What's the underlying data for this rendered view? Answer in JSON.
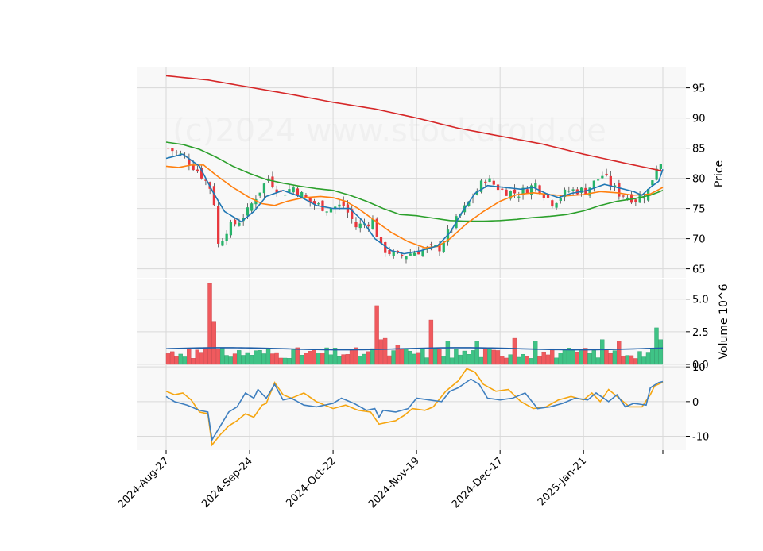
{
  "chart_data": {
    "type": "candlestick",
    "watermark": "(c)2024 www.stockdroid.de",
    "x_tick_labels": [
      "2024-Aug-27",
      "2024-Sep-24",
      "2024-Oct-22",
      "2024-Nov-19",
      "2024-Dec-17",
      "2025-Jan-21"
    ],
    "x_tick_indices": [
      0,
      20,
      40,
      60,
      80,
      100
    ],
    "n_sessions": 119,
    "grid": true,
    "colors": {
      "up": "#26b36a",
      "down": "#e8373d",
      "vol_up": "#3fc386",
      "vol_down": "#f05a5e",
      "ma_short": "#1f77b4",
      "ma_mid": "#ff7f0e",
      "ma_long": "#2ca02c",
      "ma_200": "#d62728",
      "vol_avg": "#1f5fa8",
      "osc_blue": "#3f7fbf",
      "osc_orange": "#f5a50f",
      "panel_bg": "#f8f8f8",
      "grid": "#d9d9d9"
    },
    "price_panel": {
      "ylabel": "Price",
      "ylim": [
        63.5,
        98.5
      ],
      "yticks": [
        65,
        70,
        75,
        80,
        85,
        90,
        95
      ],
      "anchors": [
        [
          0,
          85.0
        ],
        [
          4,
          83.5
        ],
        [
          8,
          80.5
        ],
        [
          10,
          78.5
        ],
        [
          11,
          76.0
        ],
        [
          12,
          69.0
        ],
        [
          14,
          71.5
        ],
        [
          17,
          73.0
        ],
        [
          19,
          74.5
        ],
        [
          21,
          77.0
        ],
        [
          24,
          80.0
        ],
        [
          27,
          77.5
        ],
        [
          30,
          78.5
        ],
        [
          34,
          76.0
        ],
        [
          38,
          75.0
        ],
        [
          42,
          75.5
        ],
        [
          45,
          72.0
        ],
        [
          49,
          73.0
        ],
        [
          51,
          68.5
        ],
        [
          55,
          67.0
        ],
        [
          60,
          68.0
        ],
        [
          65,
          68.5
        ],
        [
          68,
          72.0
        ],
        [
          73,
          77.0
        ],
        [
          76,
          80.0
        ],
        [
          80,
          78.0
        ],
        [
          84,
          77.5
        ],
        [
          88,
          79.0
        ],
        [
          92,
          76.0
        ],
        [
          96,
          78.0
        ],
        [
          100,
          78.0
        ],
        [
          104,
          80.5
        ],
        [
          108,
          77.5
        ],
        [
          112,
          76.5
        ],
        [
          115,
          78.0
        ],
        [
          117,
          82.0
        ],
        [
          119,
          83.5
        ]
      ],
      "ma_short_anchors": [
        [
          0,
          83.3
        ],
        [
          4,
          84.0
        ],
        [
          8,
          82.0
        ],
        [
          11,
          78.0
        ],
        [
          14,
          74.5
        ],
        [
          18,
          72.8
        ],
        [
          21,
          74.5
        ],
        [
          24,
          77.0
        ],
        [
          28,
          78.0
        ],
        [
          32,
          77.0
        ],
        [
          36,
          75.5
        ],
        [
          40,
          75.0
        ],
        [
          44,
          75.0
        ],
        [
          47,
          73.0
        ],
        [
          50,
          70.0
        ],
        [
          54,
          68.0
        ],
        [
          57,
          67.5
        ],
        [
          61,
          68.0
        ],
        [
          65,
          68.8
        ],
        [
          68,
          71.0
        ],
        [
          71,
          74.5
        ],
        [
          74,
          77.5
        ],
        [
          77,
          78.8
        ],
        [
          81,
          78.5
        ],
        [
          85,
          78.2
        ],
        [
          88,
          78.5
        ],
        [
          91,
          77.5
        ],
        [
          94,
          76.8
        ],
        [
          97,
          77.5
        ],
        [
          101,
          78.0
        ],
        [
          105,
          79.0
        ],
        [
          108,
          78.5
        ],
        [
          112,
          77.8
        ],
        [
          114,
          77.2
        ],
        [
          116,
          78.5
        ],
        [
          118,
          79.5
        ],
        [
          119,
          81.5
        ]
      ],
      "ma_mid_anchors": [
        [
          0,
          82.0
        ],
        [
          3,
          81.8
        ],
        [
          6,
          82.2
        ],
        [
          9,
          82.2
        ],
        [
          12,
          80.5
        ],
        [
          16,
          78.5
        ],
        [
          20,
          76.8
        ],
        [
          23,
          75.8
        ],
        [
          26,
          75.5
        ],
        [
          29,
          76.2
        ],
        [
          33,
          76.8
        ],
        [
          37,
          77.0
        ],
        [
          40,
          76.8
        ],
        [
          43,
          76.2
        ],
        [
          46,
          75.0
        ],
        [
          50,
          73.0
        ],
        [
          54,
          71.0
        ],
        [
          58,
          69.5
        ],
        [
          62,
          68.5
        ],
        [
          65,
          68.7
        ],
        [
          68,
          70.0
        ],
        [
          72,
          72.5
        ],
        [
          76,
          74.5
        ],
        [
          80,
          76.2
        ],
        [
          84,
          77.3
        ],
        [
          88,
          77.6
        ],
        [
          92,
          77.3
        ],
        [
          96,
          77.1
        ],
        [
          100,
          77.3
        ],
        [
          104,
          77.8
        ],
        [
          108,
          77.6
        ],
        [
          112,
          77.2
        ],
        [
          116,
          77.4
        ],
        [
          119,
          78.5
        ]
      ],
      "ma_long_anchors": [
        [
          0,
          86.0
        ],
        [
          4,
          85.6
        ],
        [
          8,
          84.8
        ],
        [
          12,
          83.5
        ],
        [
          16,
          82.0
        ],
        [
          20,
          80.8
        ],
        [
          24,
          79.8
        ],
        [
          28,
          79.2
        ],
        [
          32,
          78.7
        ],
        [
          36,
          78.3
        ],
        [
          40,
          78.0
        ],
        [
          44,
          77.2
        ],
        [
          48,
          76.2
        ],
        [
          52,
          75.0
        ],
        [
          56,
          74.0
        ],
        [
          60,
          73.8
        ],
        [
          64,
          73.4
        ],
        [
          68,
          73.0
        ],
        [
          72,
          72.9
        ],
        [
          76,
          72.9
        ],
        [
          80,
          73.0
        ],
        [
          84,
          73.2
        ],
        [
          88,
          73.5
        ],
        [
          92,
          73.7
        ],
        [
          96,
          74.0
        ],
        [
          100,
          74.6
        ],
        [
          104,
          75.5
        ],
        [
          108,
          76.2
        ],
        [
          112,
          76.6
        ],
        [
          116,
          77.2
        ],
        [
          119,
          78.0
        ]
      ],
      "ma_200_anchors": [
        [
          0,
          97.0
        ],
        [
          10,
          96.3
        ],
        [
          20,
          95.1
        ],
        [
          30,
          93.9
        ],
        [
          40,
          92.6
        ],
        [
          50,
          91.5
        ],
        [
          60,
          90.0
        ],
        [
          70,
          88.3
        ],
        [
          80,
          87.0
        ],
        [
          90,
          85.7
        ],
        [
          100,
          84.0
        ],
        [
          110,
          82.5
        ],
        [
          119,
          81.2
        ]
      ]
    },
    "volume_panel": {
      "ylabel": "Volume  10^6",
      "ylim": [
        0,
        6.5
      ],
      "yticks": [
        0.0,
        2.5,
        5.0
      ],
      "ytick_labels": [
        "0.0",
        "2.5",
        "5.0"
      ],
      "spikes": [
        [
          10,
          6.2
        ],
        [
          11,
          3.3
        ],
        [
          50,
          4.5
        ],
        [
          63,
          3.4
        ],
        [
          5,
          1.2
        ],
        [
          9,
          1.3
        ],
        [
          51,
          1.9
        ],
        [
          52,
          2.0
        ],
        [
          55,
          1.5
        ],
        [
          67,
          1.8
        ],
        [
          74,
          1.8
        ],
        [
          83,
          2.0
        ],
        [
          88,
          1.8
        ],
        [
          104,
          1.9
        ],
        [
          108,
          1.8
        ],
        [
          117,
          2.8
        ],
        [
          118,
          1.9
        ]
      ],
      "base": 1.0,
      "avg_level": 1.2
    },
    "oscillator_panel": {
      "ylim": [
        -14,
        10.5
      ],
      "yticks": [
        -10,
        0,
        10
      ],
      "blue_anchors": [
        [
          0,
          1.5
        ],
        [
          2,
          0.0
        ],
        [
          5,
          -1.0
        ],
        [
          8,
          -2.5
        ],
        [
          10,
          -3.0
        ],
        [
          11,
          -11.0
        ],
        [
          13,
          -7.0
        ],
        [
          15,
          -3.0
        ],
        [
          17,
          -1.5
        ],
        [
          19,
          2.5
        ],
        [
          21,
          1.0
        ],
        [
          22,
          3.5
        ],
        [
          24,
          1.0
        ],
        [
          26,
          5.0
        ],
        [
          28,
          0.5
        ],
        [
          30,
          1.0
        ],
        [
          33,
          -1.0
        ],
        [
          36,
          -1.5
        ],
        [
          40,
          -0.5
        ],
        [
          42,
          1.0
        ],
        [
          45,
          -0.5
        ],
        [
          48,
          -2.5
        ],
        [
          50,
          -2.0
        ],
        [
          51,
          -4.5
        ],
        [
          52,
          -2.5
        ],
        [
          55,
          -3.0
        ],
        [
          58,
          -2.0
        ],
        [
          60,
          1.0
        ],
        [
          63,
          0.5
        ],
        [
          66,
          0.0
        ],
        [
          68,
          3.0
        ],
        [
          70,
          4.0
        ],
        [
          73,
          6.5
        ],
        [
          75,
          5.0
        ],
        [
          77,
          1.0
        ],
        [
          80,
          0.5
        ],
        [
          83,
          1.0
        ],
        [
          86,
          2.5
        ],
        [
          89,
          -2.0
        ],
        [
          92,
          -1.5
        ],
        [
          95,
          -0.5
        ],
        [
          98,
          1.0
        ],
        [
          101,
          0.5
        ],
        [
          103,
          2.5
        ],
        [
          106,
          0.0
        ],
        [
          108,
          2.0
        ],
        [
          110,
          -1.5
        ],
        [
          112,
          -0.5
        ],
        [
          115,
          -1.0
        ],
        [
          116,
          4.0
        ],
        [
          118,
          5.5
        ],
        [
          119,
          5.8
        ]
      ],
      "orange_anchors": [
        [
          0,
          3.0
        ],
        [
          2,
          2.0
        ],
        [
          4,
          2.5
        ],
        [
          6,
          0.5
        ],
        [
          8,
          -3.0
        ],
        [
          10,
          -3.5
        ],
        [
          11,
          -12.5
        ],
        [
          13,
          -9.5
        ],
        [
          15,
          -7.0
        ],
        [
          17,
          -5.5
        ],
        [
          19,
          -3.5
        ],
        [
          21,
          -4.5
        ],
        [
          23,
          -1.0
        ],
        [
          24,
          -0.5
        ],
        [
          26,
          5.5
        ],
        [
          28,
          2.0
        ],
        [
          30,
          1.0
        ],
        [
          33,
          2.5
        ],
        [
          36,
          0.0
        ],
        [
          40,
          -2.0
        ],
        [
          43,
          -1.0
        ],
        [
          46,
          -2.5
        ],
        [
          49,
          -3.0
        ],
        [
          51,
          -6.5
        ],
        [
          53,
          -6.0
        ],
        [
          55,
          -5.5
        ],
        [
          57,
          -4.0
        ],
        [
          59,
          -2.0
        ],
        [
          62,
          -2.5
        ],
        [
          64,
          -1.5
        ],
        [
          67,
          3.0
        ],
        [
          70,
          6.0
        ],
        [
          72,
          9.5
        ],
        [
          74,
          8.5
        ],
        [
          76,
          5.0
        ],
        [
          79,
          3.0
        ],
        [
          82,
          3.5
        ],
        [
          85,
          0.0
        ],
        [
          88,
          -2.0
        ],
        [
          91,
          -1.5
        ],
        [
          94,
          0.5
        ],
        [
          97,
          1.5
        ],
        [
          100,
          0.5
        ],
        [
          102,
          2.5
        ],
        [
          104,
          0.0
        ],
        [
          106,
          3.5
        ],
        [
          108,
          1.5
        ],
        [
          111,
          -1.5
        ],
        [
          114,
          -1.5
        ],
        [
          116,
          2.0
        ],
        [
          117,
          4.5
        ],
        [
          119,
          5.6
        ]
      ]
    }
  }
}
